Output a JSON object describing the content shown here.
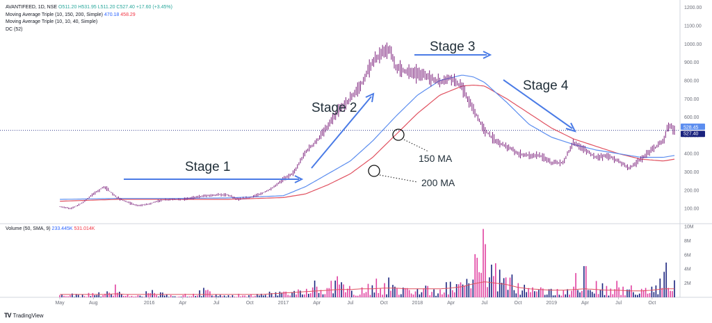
{
  "legend": {
    "symbol": "AVANTIFEED, 1D, NSE",
    "ohlc": "O511.20 H531.95 L511.20 C527.40 +17.60 (+3.45%)",
    "ma1_label": "Moving Average Triple (10, 150, 200, Simple)",
    "ma1_v1": "470.18",
    "ma1_v2": "458.29",
    "ma2_label": "Moving Average Triple (10, 10, 40, Simple)",
    "dc_label": "DC (52)"
  },
  "volume_legend": {
    "label": "Volume (50, SMA, 9)",
    "v1": "233.445K",
    "v2": "531.014K"
  },
  "branding": {
    "name": "TradingView",
    "mark": "TV"
  },
  "annotations": {
    "stage1": "Stage 1",
    "stage2": "Stage 2",
    "stage3": "Stage 3",
    "stage4": "Stage 4",
    "ma150": "150 MA",
    "ma200": "200 MA"
  },
  "colors": {
    "price": "#7b1f7b",
    "ma150": "#5b8def",
    "ma200": "#e0505f",
    "arrow": "#4a7be6",
    "vol_up": "#e040a0",
    "vol_down": "#1a237e",
    "vol_ma": "#e0505f",
    "last_price_bg": "#1a237e",
    "ma_tag_bg": "#5b8def"
  },
  "chart_data": {
    "type": "line",
    "title": "AVANTIFEED, 1D, NSE",
    "price_axis": {
      "ticks": [
        100,
        200,
        300,
        400,
        500,
        600,
        700,
        800,
        900,
        1000,
        1100,
        1200
      ],
      "tick_labels": [
        "100.00",
        "200.00",
        "300.00",
        "400.00",
        "500.00",
        "600.00",
        "700.00",
        "800.00",
        "900.00",
        "1000.00",
        "1100.00",
        "1200.00"
      ],
      "range": [
        40,
        1210
      ]
    },
    "volume_axis": {
      "ticks": [
        2,
        4,
        6,
        8,
        10
      ],
      "tick_labels": [
        "2M",
        "4M",
        "6M",
        "8M",
        "10M"
      ],
      "range": [
        0,
        10
      ]
    },
    "time_axis": {
      "tick_labels": [
        "May",
        "Aug",
        "2016",
        "Apr",
        "Jul",
        "Oct",
        "2017",
        "Apr",
        "Jul",
        "Oct",
        "2018",
        "Apr",
        "Jul",
        "Oct",
        "2019",
        "Apr",
        "Jul",
        "Oct"
      ],
      "tick_months": [
        0,
        3,
        8,
        11,
        14,
        17,
        20,
        23,
        26,
        29,
        32,
        35,
        38,
        41,
        44,
        47,
        50,
        53
      ],
      "range_months": [
        -1,
        55.5
      ]
    },
    "last_price": {
      "value": 527.4,
      "label": "527.40"
    },
    "ma_tag": {
      "value": 528.45,
      "label": "528.45"
    },
    "series": [
      {
        "name": "Price",
        "x": [
          0,
          1,
          2,
          3,
          4,
          5,
          6,
          7,
          8,
          9,
          10,
          11,
          12,
          13,
          14,
          15,
          16,
          17,
          18,
          19,
          20,
          21,
          22,
          23,
          24,
          25,
          26,
          27,
          28,
          29,
          29.5,
          30,
          31,
          32,
          33,
          34,
          35,
          36,
          37,
          38,
          39,
          40,
          41,
          42,
          43,
          44,
          45,
          46,
          47,
          48,
          49,
          50,
          51,
          52,
          53,
          54,
          54.5,
          55
        ],
        "y": [
          110,
          100,
          130,
          180,
          220,
          165,
          135,
          115,
          125,
          145,
          150,
          150,
          160,
          170,
          175,
          175,
          150,
          160,
          180,
          210,
          260,
          300,
          410,
          470,
          550,
          640,
          700,
          780,
          900,
          960,
          970,
          880,
          850,
          840,
          820,
          790,
          820,
          760,
          640,
          530,
          470,
          440,
          400,
          390,
          390,
          350,
          350,
          460,
          420,
          380,
          390,
          360,
          320,
          370,
          420,
          470,
          560,
          527
        ]
      },
      {
        "name": "150 MA",
        "x": [
          0,
          5,
          10,
          15,
          20,
          22,
          24,
          26,
          28,
          30,
          32,
          34,
          36,
          37,
          38,
          40,
          42,
          44,
          46,
          48,
          50,
          52,
          54,
          55
        ],
        "y": [
          150,
          155,
          155,
          158,
          170,
          220,
          290,
          360,
          470,
          600,
          720,
          800,
          830,
          820,
          790,
          680,
          560,
          490,
          450,
          420,
          400,
          380,
          380,
          390
        ]
      },
      {
        "name": "200 MA",
        "x": [
          0,
          5,
          10,
          15,
          20,
          22,
          24,
          26,
          28,
          30,
          32,
          34,
          36,
          37,
          38,
          40,
          42,
          44,
          46,
          48,
          50,
          52,
          54,
          55
        ],
        "y": [
          140,
          150,
          150,
          150,
          160,
          180,
          230,
          290,
          380,
          500,
          620,
          720,
          770,
          775,
          770,
          700,
          620,
          540,
          480,
          440,
          400,
          370,
          360,
          370
        ]
      }
    ],
    "volume": {
      "x": [
        0,
        1,
        2,
        3,
        4,
        5,
        6,
        7,
        8,
        9,
        10,
        11,
        12,
        13,
        14,
        15,
        16,
        17,
        18,
        19,
        20,
        21,
        22,
        23,
        24,
        25,
        26,
        27,
        28,
        29,
        30,
        31,
        32,
        33,
        34,
        35,
        36,
        37,
        38,
        39,
        40,
        41,
        42,
        43,
        44,
        45,
        46,
        47,
        48,
        49,
        50,
        51,
        52,
        53,
        54,
        55
      ],
      "values": [
        0.3,
        0.3,
        0.4,
        0.6,
        0.5,
        1.8,
        0.4,
        0.3,
        0.6,
        0.7,
        0.3,
        0.3,
        0.5,
        1.0,
        0.4,
        0.3,
        0.5,
        0.3,
        0.5,
        0.6,
        0.8,
        0.9,
        1.2,
        1.5,
        1.3,
        1.8,
        1.6,
        1.4,
        1.7,
        2.0,
        1.5,
        1.3,
        1.2,
        1.6,
        1.1,
        2.2,
        1.8,
        2.5,
        7.5,
        4.8,
        2.8,
        2.0,
        1.3,
        1.4,
        1.2,
        1.0,
        1.5,
        4.4,
        2.3,
        1.6,
        1.4,
        1.1,
        1.2,
        1.5,
        3.6,
        2.4
      ],
      "ma": [
        0.4,
        0.4,
        0.4,
        0.4,
        0.4,
        0.5,
        0.4,
        0.4,
        0.4,
        0.4,
        0.4,
        0.4,
        0.4,
        0.4,
        0.4,
        0.4,
        0.4,
        0.4,
        0.4,
        0.5,
        0.6,
        0.7,
        0.8,
        0.9,
        1.0,
        1.1,
        1.1,
        1.2,
        1.2,
        1.3,
        1.3,
        1.2,
        1.2,
        1.2,
        1.2,
        1.3,
        1.5,
        1.9,
        2.2,
        2.0,
        1.8,
        1.4,
        1.2,
        1.1,
        1.0,
        1.0,
        1.1,
        1.2,
        1.1,
        1.0,
        1.0,
        0.9,
        0.9,
        1.0,
        1.2,
        1.2
      ]
    }
  }
}
